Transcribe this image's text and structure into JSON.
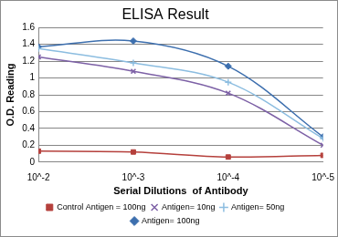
{
  "chart_data": {
    "type": "line",
    "title": "ELISA Result",
    "x_label": "Serial Dilutions  of Antibody",
    "y_label": "O.D. Reading",
    "categories": [
      "10^-2",
      "10^-3",
      "10^-4",
      "10^-5"
    ],
    "series": [
      {
        "name": "Control Antigen = 100ng",
        "color": "#b5403c",
        "marker": "square",
        "values": [
          0.13,
          0.12,
          0.06,
          0.08
        ]
      },
      {
        "name": "Antigen= 10ng",
        "color": "#7d61a6",
        "marker": "x",
        "values": [
          1.25,
          1.08,
          0.82,
          0.2
        ]
      },
      {
        "name": "Antigen= 50ng",
        "color": "#8cbde0",
        "marker": "plus",
        "values": [
          1.35,
          1.18,
          0.95,
          0.28
        ]
      },
      {
        "name": "Antigen= 100ng",
        "color": "#3d6fae",
        "marker": "diamond",
        "values": [
          1.37,
          1.44,
          1.14,
          0.3
        ]
      }
    ],
    "ylim": [
      0,
      1.6
    ],
    "yticks": [
      0,
      0.2,
      0.4,
      0.6,
      0.8,
      1,
      1.2,
      1.4,
      1.6
    ],
    "grid": true,
    "legend": "bottom"
  }
}
